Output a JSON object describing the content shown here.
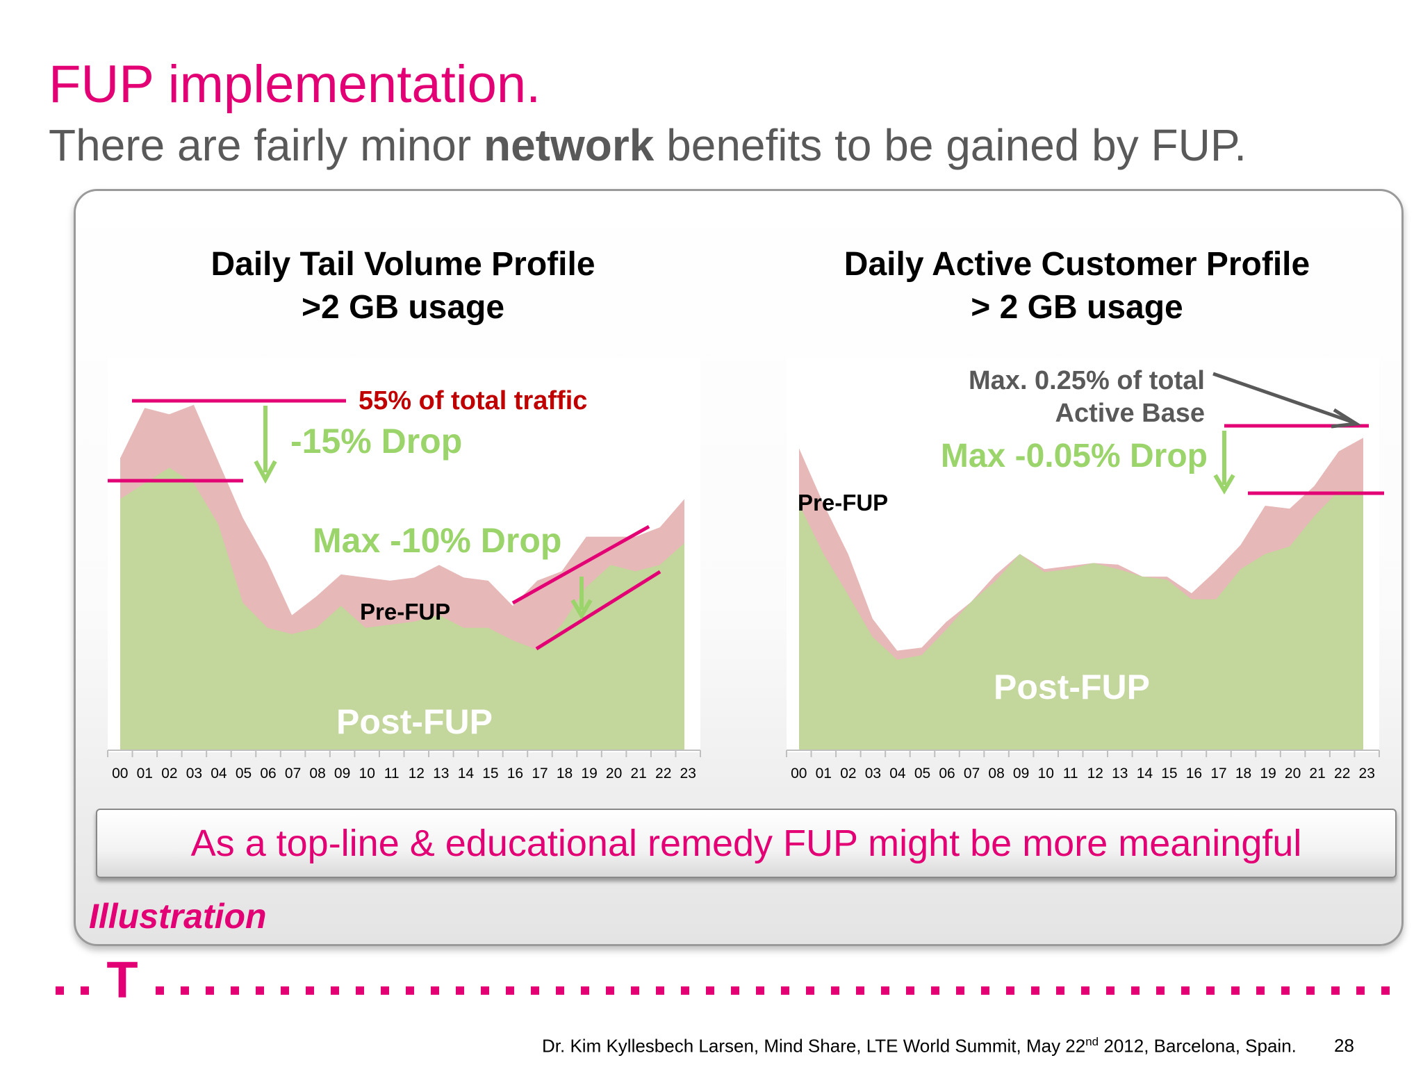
{
  "slide": {
    "title": "FUP implementation.",
    "subtitle_pre": "There are fairly minor ",
    "subtitle_bold": "network",
    "subtitle_post": " benefits to be gained by FUP.",
    "remedy_text": "As a top-line & educational remedy FUP might be more meaningful",
    "illustration_label": "Illustration",
    "footer_pre": "Dr. Kim Kyllesbech Larsen, Mind Share, LTE World Summit, May 22",
    "footer_sup": "nd",
    "footer_post": " 2012, Barcelona, Spain.",
    "page_number": "28",
    "logo_letter": "T"
  },
  "colors": {
    "magenta": "#e20074",
    "pre_fup_fill": "#e6b8b7",
    "post_fup_fill": "#c3d69b",
    "drop_green": "#9bd46a",
    "dark_red": "#c00000",
    "gray_text": "#595959"
  },
  "chart_data": [
    {
      "type": "area",
      "title_line1": "Daily Tail Volume Profile",
      "title_line2": ">2 GB usage",
      "categories": [
        "00",
        "01",
        "02",
        "03",
        "04",
        "05",
        "06",
        "07",
        "08",
        "09",
        "10",
        "11",
        "12",
        "13",
        "14",
        "15",
        "16",
        "17",
        "18",
        "19",
        "20",
        "21",
        "22",
        "23"
      ],
      "series": [
        {
          "name": "Pre-FUP",
          "values": [
            93,
            109,
            107,
            110,
            92,
            74,
            60,
            43,
            49,
            56,
            55,
            54,
            55,
            59,
            55,
            54,
            46,
            54,
            57,
            68,
            68,
            68,
            71,
            80
          ]
        },
        {
          "name": "Post-FUP",
          "values": [
            80,
            85,
            90,
            85,
            72,
            47,
            39,
            37,
            39,
            46,
            39,
            40,
            41,
            43,
            39,
            39,
            35,
            32,
            40,
            52,
            59,
            57,
            59,
            66
          ]
        }
      ],
      "ylim": [
        0,
        125
      ],
      "annotations": {
        "total_traffic": "55% of total traffic",
        "drop_peak": "-15% Drop",
        "drop_evening": "Max -10% Drop",
        "pre_label": "Pre-FUP",
        "post_label": "Post-FUP"
      }
    },
    {
      "type": "area",
      "title_line1": "Daily Active Customer Profile",
      "title_line2": "> 2 GB usage",
      "categories": [
        "00",
        "01",
        "02",
        "03",
        "04",
        "05",
        "06",
        "07",
        "08",
        "09",
        "10",
        "11",
        "12",
        "13",
        "14",
        "15",
        "16",
        "17",
        "18",
        "19",
        "20",
        "21",
        "22",
        "23"
      ],
      "series": [
        {
          "name": "Pre-FUP",
          "values": [
            0.2,
            0.163,
            0.13,
            0.087,
            0.066,
            0.068,
            0.085,
            0.098,
            0.116,
            0.13,
            0.12,
            0.122,
            0.124,
            0.123,
            0.115,
            0.115,
            0.104,
            0.119,
            0.136,
            0.162,
            0.16,
            0.175,
            0.198,
            0.207
          ]
        },
        {
          "name": "Post-FUP",
          "values": [
            0.163,
            0.13,
            0.103,
            0.075,
            0.06,
            0.063,
            0.08,
            0.098,
            0.112,
            0.13,
            0.118,
            0.12,
            0.124,
            0.12,
            0.115,
            0.113,
            0.1,
            0.1,
            0.12,
            0.13,
            0.135,
            0.155,
            0.172,
            0.172
          ]
        }
      ],
      "ylim": [
        0,
        0.26
      ],
      "annotations": {
        "max_share_line1": "Max. 0.25% of total",
        "max_share_line2": "Active Base",
        "drop": "Max -0.05% Drop",
        "pre_label": "Pre-FUP",
        "post_label": "Post-FUP"
      }
    }
  ]
}
